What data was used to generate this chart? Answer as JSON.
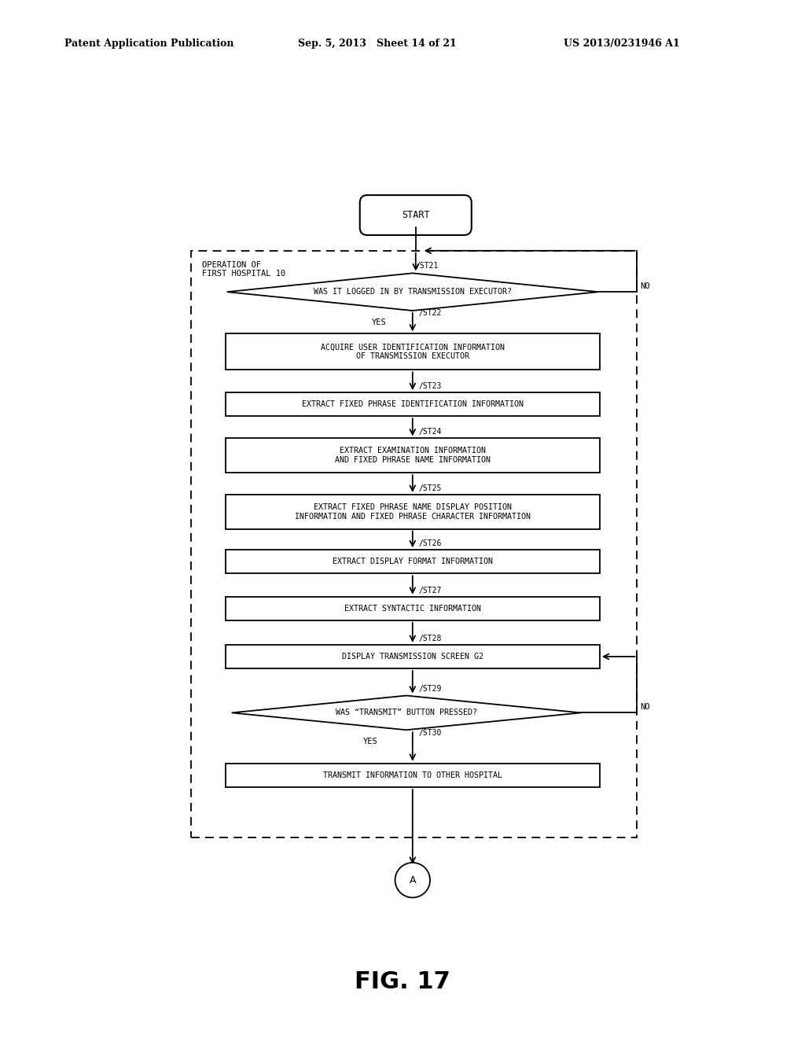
{
  "header_left": "Patent Application Publication",
  "header_mid": "Sep. 5, 2013   Sheet 14 of 21",
  "header_right": "US 2013/0231946 A1",
  "figure_label": "FIG. 17",
  "bg_color": "#ffffff",
  "dashed_box_label": "OPERATION OF\nFIRST HOSPITAL 10"
}
